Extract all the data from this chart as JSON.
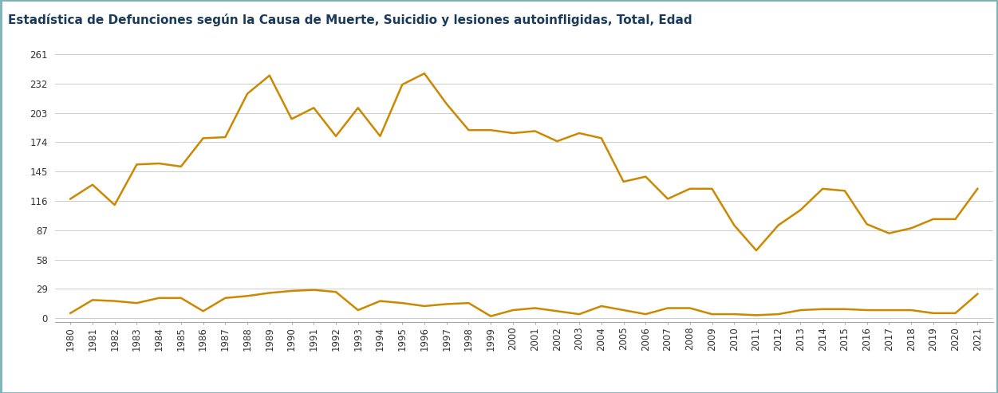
{
  "title": "Estadística de Defunciones según la Causa de Muerte, Suicidio y lesiones autoinfligidas, Total, Edad",
  "title_color": "#1a3a5c",
  "title_bg_color_top": "#b8d8dc",
  "title_bg_color_bot": "#7ab0b8",
  "line_color": "#cc8800",
  "bg_color": "#ffffff",
  "plot_bg_color": "#ffffff",
  "outer_border_color": "#7ab0b8",
  "years": [
    1980,
    1981,
    1982,
    1983,
    1984,
    1985,
    1986,
    1987,
    1988,
    1989,
    1990,
    1991,
    1992,
    1993,
    1994,
    1995,
    1996,
    1997,
    1998,
    1999,
    2000,
    2001,
    2002,
    2003,
    2004,
    2005,
    2006,
    2007,
    2008,
    2009,
    2010,
    2011,
    2012,
    2013,
    2014,
    2015,
    2016,
    2017,
    2018,
    2019,
    2020,
    2021
  ],
  "series1": [
    118,
    132,
    112,
    152,
    153,
    150,
    178,
    179,
    222,
    240,
    197,
    208,
    180,
    208,
    180,
    231,
    242,
    212,
    186,
    186,
    183,
    185,
    175,
    183,
    178,
    135,
    140,
    118,
    128,
    128,
    92,
    67,
    92,
    107,
    128,
    126,
    93,
    84,
    89,
    98,
    98,
    128
  ],
  "series2": [
    5,
    18,
    17,
    15,
    20,
    20,
    7,
    20,
    22,
    25,
    27,
    28,
    26,
    8,
    17,
    15,
    12,
    14,
    15,
    2,
    8,
    10,
    7,
    4,
    12,
    8,
    4,
    10,
    10,
    4,
    4,
    3,
    4,
    8,
    9,
    9,
    8,
    8,
    8,
    5,
    5,
    24
  ],
  "yticks": [
    0,
    29,
    58,
    87,
    116,
    145,
    174,
    203,
    232,
    261
  ],
  "grid_color": "#cccccc",
  "line_width": 1.8,
  "title_fontsize": 11,
  "tick_fontsize": 8.5
}
